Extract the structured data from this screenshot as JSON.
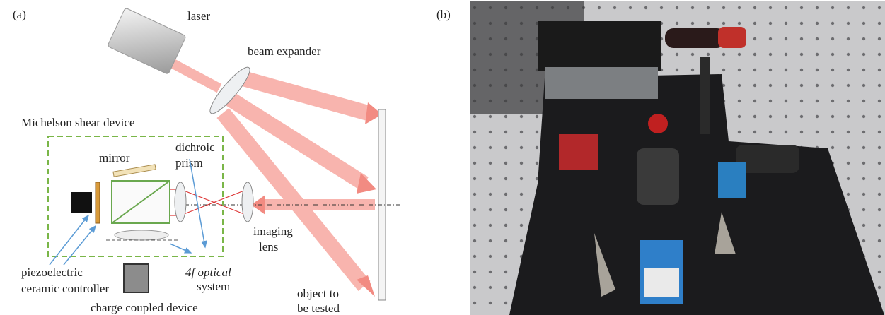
{
  "panel_a": {
    "label": "(a)",
    "laser": "laser",
    "beam_expander": "beam expander",
    "michelson": "Michelson shear device",
    "mirror": "mirror",
    "dichroic_prism": [
      "dichroic",
      "prism"
    ],
    "imaging_lens": [
      "imaging",
      "lens"
    ],
    "piezo": [
      "piezoelectric",
      "ceramic controller"
    ],
    "optical_system": [
      "4f optical",
      "system"
    ],
    "ccd": "charge coupled device",
    "object": [
      "object to",
      "be tested"
    ]
  },
  "panel_b": {
    "label": "(b)"
  }
}
